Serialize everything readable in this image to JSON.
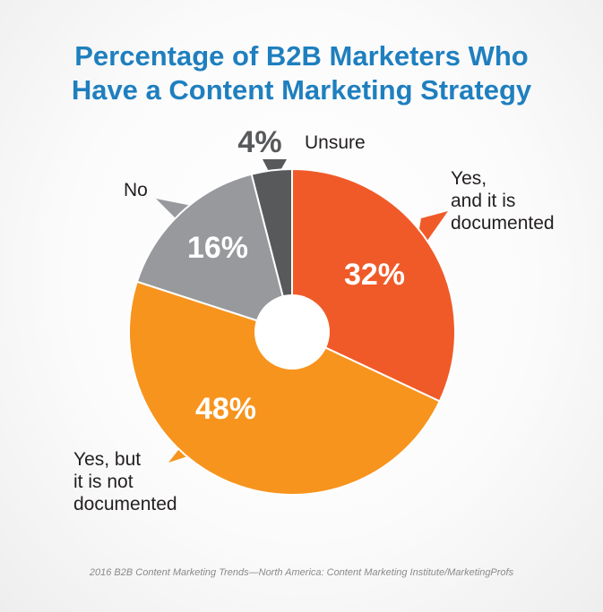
{
  "title_line1": "Percentage of B2B Marketers Who",
  "title_line2": "Have a Content Marketing Strategy",
  "source": "2016 B2B Content Marketing Trends—North America: Content Marketing Institute/MarketingProfs",
  "chart_data": {
    "type": "pie",
    "title": "Percentage of B2B Marketers Who Have a Content Marketing Strategy",
    "slices": [
      {
        "label": "Yes, and it is documented",
        "label_lines": [
          "Yes,",
          "and it is",
          "documented"
        ],
        "value": 32,
        "display": "32%",
        "color": "#f05a28"
      },
      {
        "label": "Yes, but it is not documented",
        "label_lines": [
          "Yes, but",
          "it is not",
          "documented"
        ],
        "value": 48,
        "display": "48%",
        "color": "#f7941d"
      },
      {
        "label": "No",
        "label_lines": [
          "No"
        ],
        "value": 16,
        "display": "16%",
        "color": "#97999c"
      },
      {
        "label": "Unsure",
        "label_lines": [
          "Unsure"
        ],
        "value": 4,
        "display": "4%",
        "color": "#58595b"
      }
    ],
    "donut_hole": true,
    "legend": "none"
  }
}
